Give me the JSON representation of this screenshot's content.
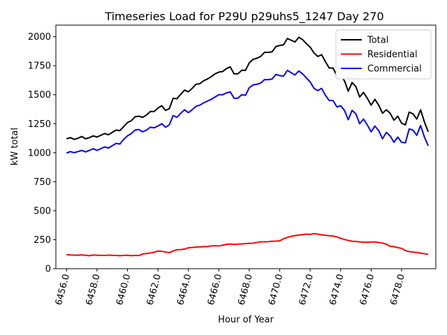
{
  "chart_data": {
    "type": "line",
    "title": "Timeseries Load for P29U p29uhs5_1247  Day 270",
    "xlabel": "Hour of Year",
    "ylabel": "kW total",
    "xlim": [
      6455.3,
      6480.25
    ],
    "ylim": [
      0,
      2100
    ],
    "x_start": 6456.0,
    "x_step": 0.25,
    "xticks": [
      6456,
      6458,
      6460,
      6462,
      6464,
      6466,
      6468,
      6470,
      6472,
      6474,
      6476,
      6478
    ],
    "xtick_labels": [
      "6456.0",
      "6458.0",
      "6460.0",
      "6462.0",
      "6464.0",
      "6466.0",
      "6468.0",
      "6470.0",
      "6472.0",
      "6474.0",
      "6476.0",
      "6478.0"
    ],
    "yticks": [
      0,
      250,
      500,
      750,
      1000,
      1250,
      1500,
      1750,
      2000
    ],
    "ytick_labels": [
      "0",
      "250",
      "500",
      "750",
      "1000",
      "1250",
      "1500",
      "1750",
      "2000"
    ],
    "legend_position": "top-right",
    "series": [
      {
        "name": "Total",
        "color": "#000000",
        "values": [
          1120,
          1130,
          1115,
          1125,
          1140,
          1120,
          1130,
          1145,
          1135,
          1150,
          1165,
          1155,
          1175,
          1195,
          1190,
          1225,
          1260,
          1275,
          1310,
          1315,
          1305,
          1325,
          1355,
          1355,
          1385,
          1405,
          1365,
          1380,
          1470,
          1465,
          1505,
          1540,
          1525,
          1555,
          1590,
          1595,
          1620,
          1635,
          1655,
          1680,
          1695,
          1700,
          1725,
          1740,
          1680,
          1680,
          1710,
          1710,
          1775,
          1805,
          1815,
          1830,
          1865,
          1865,
          1870,
          1915,
          1925,
          1930,
          1985,
          1970,
          1955,
          1995,
          1975,
          1940,
          1910,
          1860,
          1830,
          1845,
          1785,
          1730,
          1730,
          1665,
          1665,
          1620,
          1530,
          1605,
          1570,
          1480,
          1520,
          1470,
          1410,
          1460,
          1410,
          1340,
          1370,
          1340,
          1280,
          1315,
          1255,
          1240,
          1350,
          1335,
          1290,
          1370,
          1265,
          1180
        ]
      },
      {
        "name": "Residential",
        "color": "#ff0000",
        "values": [
          122,
          118,
          117,
          116,
          119,
          116,
          112,
          118,
          116,
          115,
          114,
          117,
          115,
          114,
          112,
          114,
          116,
          112,
          115,
          113,
          127,
          131,
          135,
          142,
          152,
          150,
          144,
          138,
          153,
          163,
          165,
          169,
          180,
          183,
          187,
          187,
          190,
          191,
          196,
          198,
          196,
          203,
          210,
          213,
          210,
          212,
          214,
          216,
          219,
          220,
          226,
          232,
          232,
          233,
          237,
          238,
          241,
          258,
          270,
          279,
          285,
          290,
          294,
          298,
          296,
          302,
          298,
          292,
          288,
          284,
          282,
          274,
          262,
          252,
          244,
          237,
          235,
          231,
          229,
          228,
          230,
          231,
          226,
          220,
          212,
          193,
          190,
          182,
          175,
          156,
          147,
          143,
          140,
          134,
          129,
          124
        ]
      },
      {
        "name": "Commercial",
        "color": "#0000ff",
        "values": [
          997,
          1010,
          1000,
          1010,
          1020,
          1007,
          1020,
          1035,
          1020,
          1035,
          1050,
          1040,
          1060,
          1080,
          1075,
          1115,
          1145,
          1165,
          1195,
          1200,
          1180,
          1195,
          1220,
          1215,
          1230,
          1250,
          1220,
          1240,
          1320,
          1305,
          1340,
          1370,
          1345,
          1370,
          1400,
          1410,
          1430,
          1445,
          1460,
          1480,
          1500,
          1500,
          1515,
          1525,
          1470,
          1470,
          1500,
          1495,
          1560,
          1585,
          1590,
          1600,
          1630,
          1630,
          1635,
          1675,
          1665,
          1660,
          1710,
          1690,
          1670,
          1705,
          1680,
          1645,
          1610,
          1555,
          1535,
          1555,
          1495,
          1450,
          1450,
          1395,
          1405,
          1365,
          1285,
          1365,
          1335,
          1250,
          1290,
          1240,
          1180,
          1230,
          1190,
          1120,
          1175,
          1145,
          1090,
          1135,
          1090,
          1085,
          1205,
          1195,
          1150,
          1235,
          1135,
          1060
        ]
      }
    ]
  }
}
